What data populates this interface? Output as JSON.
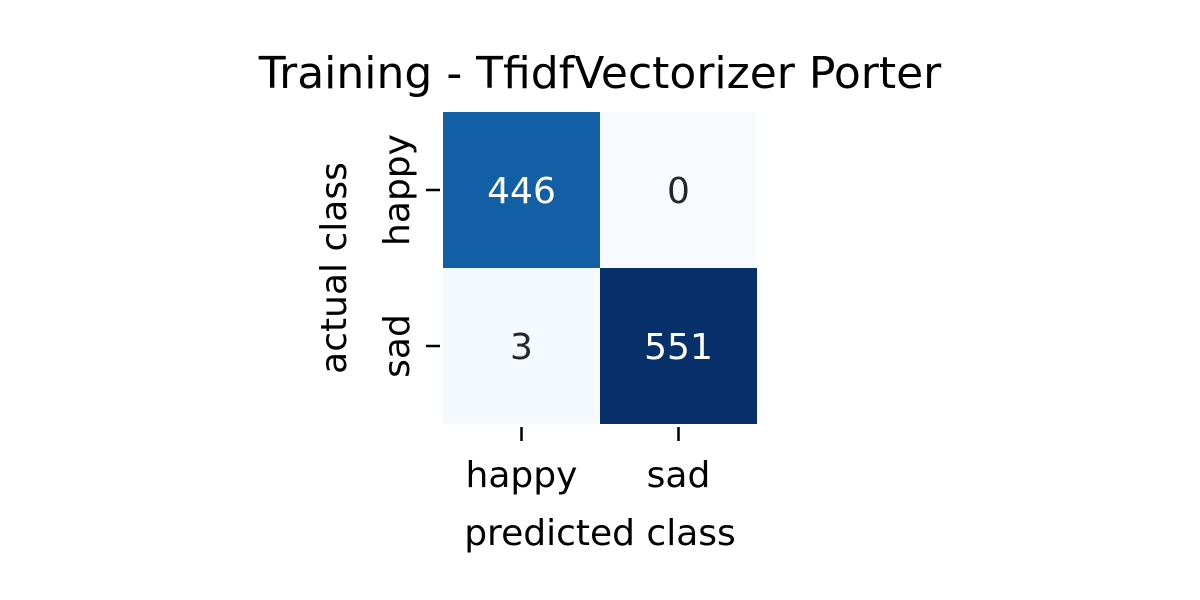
{
  "chart_data": {
    "type": "heatmap",
    "title": "Training - TfidfVectorizer Porter",
    "xlabel": "predicted class",
    "ylabel": "actual class",
    "x_categories": [
      "happy",
      "sad"
    ],
    "y_categories": [
      "happy",
      "sad"
    ],
    "values": [
      [
        446,
        0
      ],
      [
        3,
        551
      ]
    ],
    "colormap": "Blues",
    "colorbar": false,
    "colors": {
      "low": "#f7fbff",
      "mid": "#1361a9",
      "high": "#08306b",
      "text_on_dark": "#ffffff",
      "text_on_light": "#262626"
    }
  }
}
